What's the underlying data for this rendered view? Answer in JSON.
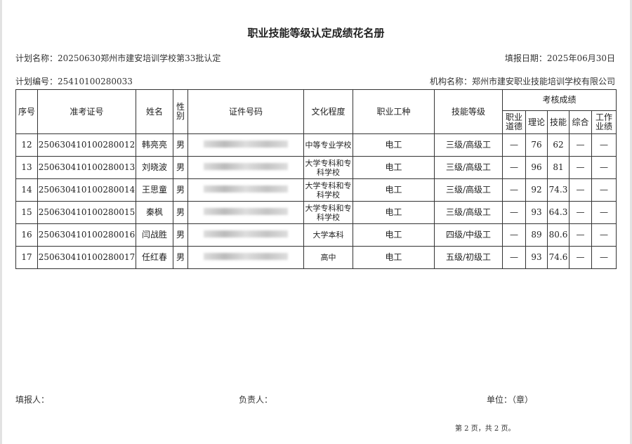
{
  "title": "职业技能等级认定成绩花名册",
  "plan_name": "计划名称：20250630郑州市建安培训学校第33批认定",
  "fill_date": "填报日期：2025年06月30日",
  "plan_no": "计划编号：25410100280033",
  "org_name": "机构名称：郑州市建安职业技能培训学校有限公司",
  "headers": {
    "seq": "序号",
    "exam_no": "准考证号",
    "name": "姓名",
    "gender": "性别",
    "id_no": "证件号码",
    "education": "文化程度",
    "occupation": "职业工种",
    "level": "技能等级",
    "scores": "考核成绩",
    "ethics": "职业道德",
    "theory": "理论",
    "skill": "技能",
    "overall": "综合",
    "performance": "工作业绩"
  },
  "rows": [
    {
      "seq": "12",
      "exam_no": "250630410100280012",
      "name": "韩亮亮",
      "gender": "男",
      "education": "中等专业学校",
      "occupation": "电工",
      "level": "三级/高级工",
      "ethics": "—",
      "theory": "76",
      "skill": "62",
      "overall": "—",
      "performance": "—"
    },
    {
      "seq": "13",
      "exam_no": "250630410100280013",
      "name": "刘晓波",
      "gender": "男",
      "education": "大学专科和专科学校",
      "occupation": "电工",
      "level": "三级/高级工",
      "ethics": "—",
      "theory": "96",
      "skill": "81",
      "overall": "—",
      "performance": "—"
    },
    {
      "seq": "14",
      "exam_no": "250630410100280014",
      "name": "王思童",
      "gender": "男",
      "education": "大学专科和专科学校",
      "occupation": "电工",
      "level": "三级/高级工",
      "ethics": "—",
      "theory": "92",
      "skill": "74.3",
      "overall": "—",
      "performance": "—"
    },
    {
      "seq": "15",
      "exam_no": "250630410100280015",
      "name": "秦枫",
      "gender": "男",
      "education": "大学专科和专科学校",
      "occupation": "电工",
      "level": "三级/高级工",
      "ethics": "—",
      "theory": "93",
      "skill": "64.3",
      "overall": "—",
      "performance": "—"
    },
    {
      "seq": "16",
      "exam_no": "250630410100280016",
      "name": "闫战胜",
      "gender": "男",
      "education": "大学本科",
      "occupation": "电工",
      "level": "四级/中级工",
      "ethics": "—",
      "theory": "89",
      "skill": "80.6",
      "overall": "—",
      "performance": "—"
    },
    {
      "seq": "17",
      "exam_no": "250630410100280017",
      "name": "任红春",
      "gender": "男",
      "education": "高中",
      "occupation": "电工",
      "level": "五级/初级工",
      "ethics": "—",
      "theory": "93",
      "skill": "74.6",
      "overall": "—",
      "performance": "—"
    }
  ],
  "footer": {
    "filler": "填报人：",
    "leader": "负责人：",
    "unit": "单位：（章）",
    "page": "第 2 页，共 2 页。"
  }
}
